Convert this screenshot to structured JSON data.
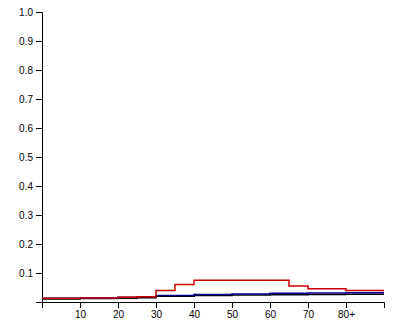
{
  "chart_data": {
    "type": "step",
    "xlim": [
      0,
      90
    ],
    "xticks": [
      10,
      20,
      30,
      40,
      50,
      60,
      70,
      {
        "value": 80,
        "label": "80+"
      }
    ],
    "ylim": [
      0,
      1.0
    ],
    "yticks": [
      0.1,
      0.2,
      0.3,
      0.4,
      0.5,
      0.6,
      0.7,
      0.8,
      0.9,
      {
        "value": 1.0,
        "label": "1.0"
      }
    ],
    "series": [
      {
        "color": "#000000",
        "x": [
          0,
          10,
          20,
          25,
          30,
          40,
          50,
          60,
          70,
          80,
          90
        ],
        "values": [
          0.01,
          0.012,
          0.013,
          0.015,
          0.02,
          0.022,
          0.024,
          0.025,
          0.026,
          0.027,
          0.028
        ]
      },
      {
        "color": "#00008B",
        "x": [
          0,
          10,
          20,
          25,
          30,
          40,
          50,
          60,
          70,
          80,
          90
        ],
        "values": [
          0.013,
          0.014,
          0.016,
          0.018,
          0.022,
          0.026,
          0.028,
          0.03,
          0.031,
          0.032,
          0.033
        ]
      },
      {
        "color": "#cc0000",
        "x": [
          0,
          10,
          20,
          25,
          30,
          35,
          40,
          60,
          65,
          70,
          80,
          90
        ],
        "values": [
          0.013,
          0.014,
          0.016,
          0.018,
          0.04,
          0.06,
          0.075,
          0.075,
          0.055,
          0.046,
          0.04,
          0.036
        ]
      }
    ]
  }
}
